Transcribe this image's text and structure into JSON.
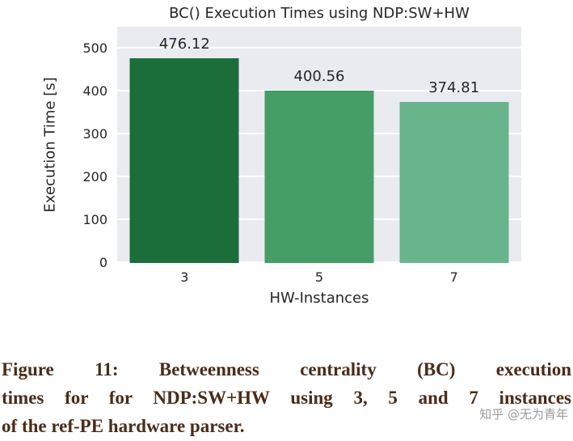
{
  "chart_data": {
    "type": "bar",
    "title": "BC() Execution Times using NDP:SW+HW",
    "xlabel": "HW-Instances",
    "ylabel": "Execution Time [s]",
    "categories": [
      "3",
      "5",
      "7"
    ],
    "values": [
      476.12,
      400.56,
      374.81
    ],
    "value_labels": [
      "476.12",
      "400.56",
      "374.81"
    ],
    "bar_colors": [
      "#1b6e3a",
      "#459e66",
      "#68b58b"
    ],
    "ylim": [
      0,
      550
    ],
    "yticks": [
      0,
      100,
      200,
      300,
      400,
      500
    ],
    "grid": "horizontal-white-gridlines",
    "plot_background": "#eaeaf1",
    "legend": "none"
  },
  "caption": {
    "lines": [
      "Figure 11: Betweenness centrality (BC) execution",
      "times for for NDP:SW+HW using 3, 5 and 7 instances",
      "of the ref-PE hardware parser."
    ],
    "color": "#4a2c18"
  },
  "watermark": {
    "text": "知乎 @无为青年",
    "color": "#9b9b9b"
  }
}
